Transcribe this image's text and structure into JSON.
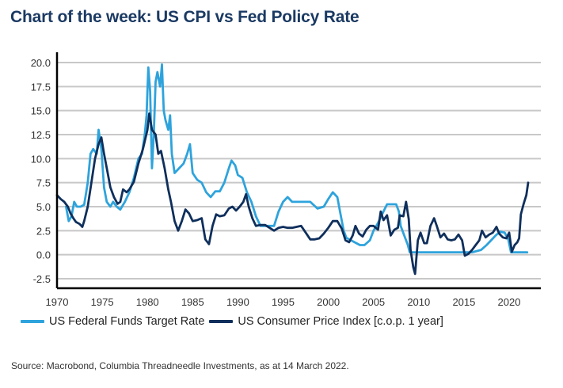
{
  "title": "Chart of the week: US CPI vs Fed Policy Rate",
  "source": "Source: Macrobond, Columbia Threadneedle Investments, as at 14 March 2022.",
  "chart_data": {
    "type": "line",
    "title": "Chart of the week: US CPI vs Fed Policy Rate",
    "xlabel": "",
    "ylabel": "",
    "xlim": [
      1970,
      2023.3
    ],
    "ylim": [
      -3.5,
      21.0
    ],
    "grid": true,
    "legend_position": "bottom",
    "x_ticks": [
      "1970",
      "1975",
      "1980",
      "1985",
      "1990",
      "1995",
      "2000",
      "2005",
      "2010",
      "2015",
      "2020"
    ],
    "y_ticks": [
      "20.0",
      "17.5",
      "15.0",
      "12.5",
      "10.0",
      "7.5",
      "5.0",
      "2.5",
      "0.0",
      "-2.5"
    ],
    "y_tick_values": [
      20.0,
      17.5,
      15.0,
      12.5,
      10.0,
      7.5,
      5.0,
      2.5,
      0.0,
      -2.5
    ],
    "series": [
      {
        "name": "US Federal Funds Target Rate",
        "color": "#2ea3dc",
        "points": [
          [
            1971.0,
            5.0
          ],
          [
            1971.3,
            3.5
          ],
          [
            1971.6,
            4.0
          ],
          [
            1971.9,
            5.5
          ],
          [
            1972.2,
            5.0
          ],
          [
            1972.6,
            5.0
          ],
          [
            1973.0,
            5.2
          ],
          [
            1973.4,
            7.5
          ],
          [
            1973.7,
            10.5
          ],
          [
            1974.0,
            11.0
          ],
          [
            1974.4,
            10.5
          ],
          [
            1974.6,
            13.0
          ],
          [
            1974.9,
            11.0
          ],
          [
            1975.2,
            7.0
          ],
          [
            1975.5,
            5.5
          ],
          [
            1975.9,
            5.0
          ],
          [
            1976.2,
            5.5
          ],
          [
            1976.6,
            5.0
          ],
          [
            1977.0,
            4.7
          ],
          [
            1977.5,
            5.5
          ],
          [
            1978.0,
            6.5
          ],
          [
            1978.5,
            8.0
          ],
          [
            1979.0,
            10.0
          ],
          [
            1979.4,
            10.5
          ],
          [
            1979.7,
            12.5
          ],
          [
            1979.9,
            14.5
          ],
          [
            1980.1,
            19.5
          ],
          [
            1980.3,
            17.0
          ],
          [
            1980.5,
            9.0
          ],
          [
            1980.7,
            12.5
          ],
          [
            1980.9,
            18.0
          ],
          [
            1981.1,
            19.0
          ],
          [
            1981.4,
            17.5
          ],
          [
            1981.6,
            19.8
          ],
          [
            1981.8,
            15.0
          ],
          [
            1982.0,
            14.0
          ],
          [
            1982.3,
            13.0
          ],
          [
            1982.5,
            14.5
          ],
          [
            1982.7,
            10.5
          ],
          [
            1983.0,
            8.5
          ],
          [
            1983.5,
            9.0
          ],
          [
            1984.0,
            9.5
          ],
          [
            1984.4,
            10.5
          ],
          [
            1984.7,
            11.5
          ],
          [
            1985.0,
            8.5
          ],
          [
            1985.5,
            7.8
          ],
          [
            1986.0,
            7.5
          ],
          [
            1986.5,
            6.5
          ],
          [
            1987.0,
            6.0
          ],
          [
            1987.5,
            6.6
          ],
          [
            1988.0,
            6.6
          ],
          [
            1988.5,
            7.5
          ],
          [
            1989.0,
            9.0
          ],
          [
            1989.3,
            9.8
          ],
          [
            1989.7,
            9.3
          ],
          [
            1990.0,
            8.3
          ],
          [
            1990.5,
            8.0
          ],
          [
            1991.0,
            6.5
          ],
          [
            1991.5,
            5.5
          ],
          [
            1992.0,
            4.0
          ],
          [
            1992.5,
            3.0
          ],
          [
            1993.0,
            3.0
          ],
          [
            1994.0,
            3.0
          ],
          [
            1994.5,
            4.5
          ],
          [
            1995.0,
            5.5
          ],
          [
            1995.5,
            6.0
          ],
          [
            1996.0,
            5.5
          ],
          [
            1997.0,
            5.5
          ],
          [
            1998.0,
            5.5
          ],
          [
            1998.8,
            4.8
          ],
          [
            1999.5,
            5.0
          ],
          [
            2000.0,
            5.8
          ],
          [
            2000.5,
            6.5
          ],
          [
            2001.0,
            6.0
          ],
          [
            2001.3,
            4.5
          ],
          [
            2001.7,
            2.5
          ],
          [
            2002.0,
            1.75
          ],
          [
            2003.0,
            1.25
          ],
          [
            2003.5,
            1.0
          ],
          [
            2004.0,
            1.0
          ],
          [
            2004.6,
            1.5
          ],
          [
            2005.0,
            2.5
          ],
          [
            2005.5,
            3.3
          ],
          [
            2006.0,
            4.3
          ],
          [
            2006.5,
            5.25
          ],
          [
            2007.5,
            5.25
          ],
          [
            2007.8,
            4.5
          ],
          [
            2008.0,
            3.0
          ],
          [
            2008.4,
            2.0
          ],
          [
            2008.8,
            1.0
          ],
          [
            2009.0,
            0.25
          ],
          [
            2015.9,
            0.25
          ],
          [
            2016.9,
            0.5
          ],
          [
            2017.5,
            1.0
          ],
          [
            2018.0,
            1.5
          ],
          [
            2018.5,
            2.0
          ],
          [
            2019.0,
            2.4
          ],
          [
            2019.5,
            2.3
          ],
          [
            2019.9,
            1.6
          ],
          [
            2020.2,
            0.25
          ],
          [
            2022.0,
            0.25
          ]
        ]
      },
      {
        "name": "US Consumer Price Index [c.o.p. 1 year]",
        "color": "#0f2f5c",
        "points": [
          [
            1970.0,
            6.2
          ],
          [
            1970.4,
            5.8
          ],
          [
            1970.8,
            5.5
          ],
          [
            1971.2,
            5.0
          ],
          [
            1971.5,
            4.3
          ],
          [
            1971.8,
            3.8
          ],
          [
            1972.1,
            3.4
          ],
          [
            1972.5,
            3.2
          ],
          [
            1972.8,
            2.9
          ],
          [
            1973.0,
            3.5
          ],
          [
            1973.4,
            5.0
          ],
          [
            1973.8,
            7.5
          ],
          [
            1974.2,
            10.0
          ],
          [
            1974.6,
            11.5
          ],
          [
            1974.9,
            12.2
          ],
          [
            1975.2,
            10.5
          ],
          [
            1975.6,
            8.5
          ],
          [
            1975.9,
            7.0
          ],
          [
            1976.3,
            6.0
          ],
          [
            1976.7,
            5.3
          ],
          [
            1977.0,
            5.5
          ],
          [
            1977.3,
            6.8
          ],
          [
            1977.7,
            6.5
          ],
          [
            1978.0,
            6.8
          ],
          [
            1978.5,
            7.6
          ],
          [
            1979.0,
            9.5
          ],
          [
            1979.5,
            11.0
          ],
          [
            1980.0,
            13.0
          ],
          [
            1980.2,
            14.7
          ],
          [
            1980.5,
            13.0
          ],
          [
            1980.9,
            12.5
          ],
          [
            1981.2,
            10.5
          ],
          [
            1981.5,
            10.8
          ],
          [
            1981.9,
            9.0
          ],
          [
            1982.3,
            6.8
          ],
          [
            1982.6,
            5.5
          ],
          [
            1983.0,
            3.5
          ],
          [
            1983.4,
            2.5
          ],
          [
            1983.8,
            3.5
          ],
          [
            1984.2,
            4.7
          ],
          [
            1984.6,
            4.3
          ],
          [
            1985.0,
            3.5
          ],
          [
            1985.5,
            3.6
          ],
          [
            1986.0,
            3.8
          ],
          [
            1986.4,
            1.6
          ],
          [
            1986.8,
            1.1
          ],
          [
            1987.2,
            3.0
          ],
          [
            1987.6,
            4.2
          ],
          [
            1988.0,
            4.0
          ],
          [
            1988.5,
            4.1
          ],
          [
            1989.0,
            4.8
          ],
          [
            1989.4,
            5.0
          ],
          [
            1989.8,
            4.6
          ],
          [
            1990.2,
            5.0
          ],
          [
            1990.6,
            5.5
          ],
          [
            1990.9,
            6.3
          ],
          [
            1991.2,
            5.0
          ],
          [
            1991.6,
            3.8
          ],
          [
            1992.0,
            3.0
          ],
          [
            1992.5,
            3.1
          ],
          [
            1993.0,
            3.1
          ],
          [
            1993.5,
            2.8
          ],
          [
            1994.0,
            2.5
          ],
          [
            1994.5,
            2.8
          ],
          [
            1995.0,
            2.9
          ],
          [
            1995.5,
            2.8
          ],
          [
            1996.0,
            2.8
          ],
          [
            1996.5,
            2.9
          ],
          [
            1997.0,
            3.0
          ],
          [
            1997.5,
            2.3
          ],
          [
            1998.0,
            1.6
          ],
          [
            1998.5,
            1.6
          ],
          [
            1999.0,
            1.7
          ],
          [
            1999.5,
            2.2
          ],
          [
            2000.0,
            2.8
          ],
          [
            2000.5,
            3.5
          ],
          [
            2001.0,
            3.5
          ],
          [
            2001.5,
            2.7
          ],
          [
            2001.9,
            1.5
          ],
          [
            2002.3,
            1.3
          ],
          [
            2002.7,
            2.0
          ],
          [
            2003.0,
            3.0
          ],
          [
            2003.4,
            2.2
          ],
          [
            2003.8,
            1.9
          ],
          [
            2004.2,
            2.6
          ],
          [
            2004.6,
            3.0
          ],
          [
            2005.0,
            3.0
          ],
          [
            2005.5,
            2.6
          ],
          [
            2005.8,
            4.5
          ],
          [
            2006.1,
            3.6
          ],
          [
            2006.5,
            4.1
          ],
          [
            2006.9,
            2.0
          ],
          [
            2007.3,
            2.6
          ],
          [
            2007.7,
            2.8
          ],
          [
            2007.9,
            4.1
          ],
          [
            2008.3,
            4.0
          ],
          [
            2008.6,
            5.5
          ],
          [
            2008.9,
            3.7
          ],
          [
            2009.1,
            0.5
          ],
          [
            2009.4,
            -1.3
          ],
          [
            2009.6,
            -2.0
          ],
          [
            2009.9,
            1.5
          ],
          [
            2010.2,
            2.3
          ],
          [
            2010.6,
            1.2
          ],
          [
            2010.9,
            1.2
          ],
          [
            2011.3,
            3.0
          ],
          [
            2011.7,
            3.8
          ],
          [
            2012.0,
            3.0
          ],
          [
            2012.4,
            1.8
          ],
          [
            2012.8,
            2.2
          ],
          [
            2013.2,
            1.6
          ],
          [
            2013.6,
            1.5
          ],
          [
            2014.0,
            1.6
          ],
          [
            2014.4,
            2.1
          ],
          [
            2014.8,
            1.5
          ],
          [
            2015.1,
            -0.1
          ],
          [
            2015.5,
            0.1
          ],
          [
            2015.9,
            0.5
          ],
          [
            2016.3,
            1.0
          ],
          [
            2016.7,
            1.5
          ],
          [
            2017.0,
            2.5
          ],
          [
            2017.4,
            1.8
          ],
          [
            2017.8,
            2.1
          ],
          [
            2018.2,
            2.3
          ],
          [
            2018.6,
            2.9
          ],
          [
            2018.9,
            2.2
          ],
          [
            2019.3,
            1.8
          ],
          [
            2019.7,
            1.7
          ],
          [
            2020.0,
            2.3
          ],
          [
            2020.3,
            0.3
          ],
          [
            2020.6,
            1.0
          ],
          [
            2020.9,
            1.3
          ],
          [
            2021.1,
            1.7
          ],
          [
            2021.3,
            4.2
          ],
          [
            2021.6,
            5.3
          ],
          [
            2021.9,
            6.2
          ],
          [
            2022.1,
            7.5
          ]
        ]
      }
    ]
  },
  "legend": [
    {
      "label": "US Federal Funds Target Rate",
      "color": "#2ea3dc"
    },
    {
      "label": "US Consumer Price Index [c.o.p. 1 year]",
      "color": "#0f2f5c"
    }
  ]
}
